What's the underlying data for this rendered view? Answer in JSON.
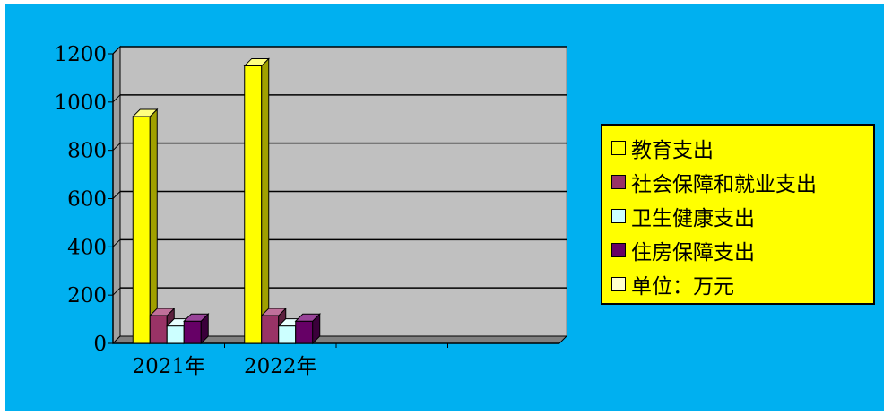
{
  "chart_data": {
    "type": "bar",
    "categories": [
      "2021年",
      "2022年",
      "",
      ""
    ],
    "series": [
      {
        "name": "教育支出",
        "values": [
          940,
          1150,
          null,
          null
        ],
        "color": "#ffff00",
        "side_color": "#a0a000",
        "top_color": "#ffff80"
      },
      {
        "name": "社会保障和就业支出",
        "values": [
          115,
          115,
          null,
          null
        ],
        "color": "#993366",
        "side_color": "#5c1f3d",
        "top_color": "#c0709a"
      },
      {
        "name": "卫生健康支出",
        "values": [
          72,
          72,
          null,
          null
        ],
        "color": "#ccffff",
        "side_color": "#80a0a0",
        "top_color": "#e8ffff"
      },
      {
        "name": "住房保障支出",
        "values": [
          92,
          92,
          null,
          null
        ],
        "color": "#660066",
        "side_color": "#3a003a",
        "top_color": "#994499"
      }
    ],
    "legend_extra": {
      "label": "单位：万元",
      "color": "#ffffcc"
    },
    "y_ticks": [
      "0",
      "200",
      "400",
      "600",
      "800",
      "1000",
      "1200"
    ],
    "ylim": [
      0,
      1200
    ],
    "grid": true,
    "legend_position": "right",
    "colors": {
      "background": "#00b0f0",
      "plot_wall": "#c0c0c0",
      "legend_bg": "#ffff00"
    }
  }
}
